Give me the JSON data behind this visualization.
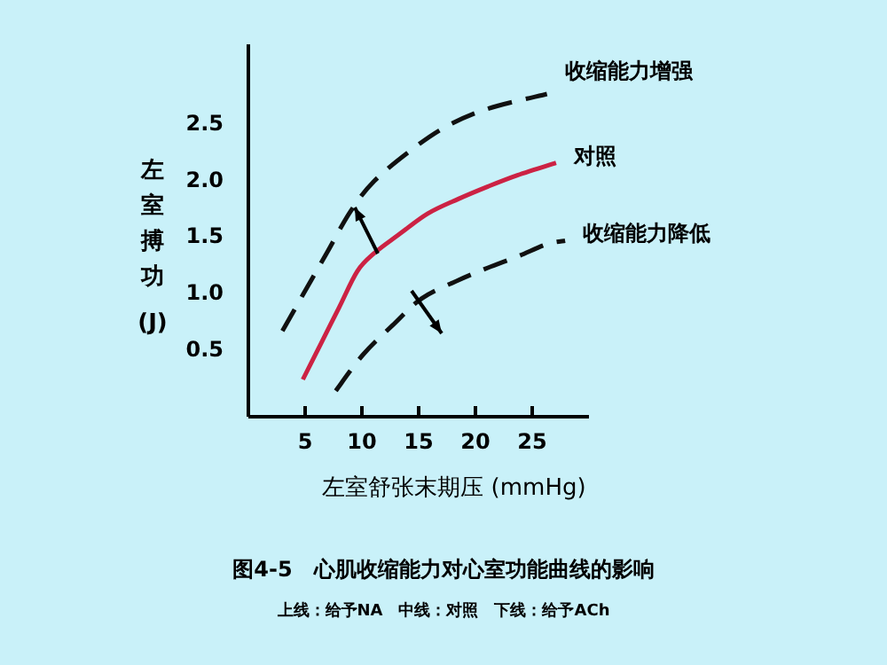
{
  "chart_data": {
    "type": "line",
    "xlabel": "左室舒张末期压 (mmHg)",
    "ylabel": "左室搏功 (J)",
    "xlim": [
      0,
      30
    ],
    "ylim": [
      -0.1,
      3.2
    ],
    "xticks": [
      5,
      10,
      15,
      20,
      25
    ],
    "yticks": [
      0.5,
      {
        "value": 1,
        "label": "1.0"
      },
      1.5,
      {
        "value": 2,
        "label": "2.0"
      },
      2.5
    ],
    "legend": false,
    "grid": false,
    "series": [
      {
        "name": "收缩能力增强",
        "color": "#111111",
        "line_style": "dashed",
        "x": [
          3.0,
          4.8,
          6.9,
          9.0,
          11.1,
          14.3,
          17.4,
          21.1,
          26.3
        ],
        "values": [
          0.66,
          0.98,
          1.35,
          1.72,
          1.99,
          2.26,
          2.47,
          2.63,
          2.76
        ]
      },
      {
        "name": "对照",
        "color": "#cc2244",
        "line_style": "solid",
        "x": [
          4.8,
          6.4,
          8.0,
          9.6,
          11.1,
          13.2,
          15.8,
          18.5,
          21.1,
          23.7,
          27.1
        ],
        "values": [
          0.23,
          0.55,
          0.87,
          1.19,
          1.35,
          1.51,
          1.7,
          1.83,
          1.94,
          2.04,
          2.15
        ]
      },
      {
        "name": "收缩能力降低",
        "color": "#111111",
        "line_style": "dashed",
        "x": [
          7.7,
          10.1,
          12.7,
          15.3,
          18.5,
          21.1,
          23.7,
          26.3,
          27.9
        ],
        "values": [
          0.13,
          0.45,
          0.71,
          0.95,
          1.11,
          1.22,
          1.32,
          1.43,
          1.46
        ]
      }
    ],
    "annotations": [
      "图4-5　心肌收缩能力对心室功能曲线的影响",
      "上线：给予NA　中线：对照　下线：给予ACh"
    ]
  }
}
